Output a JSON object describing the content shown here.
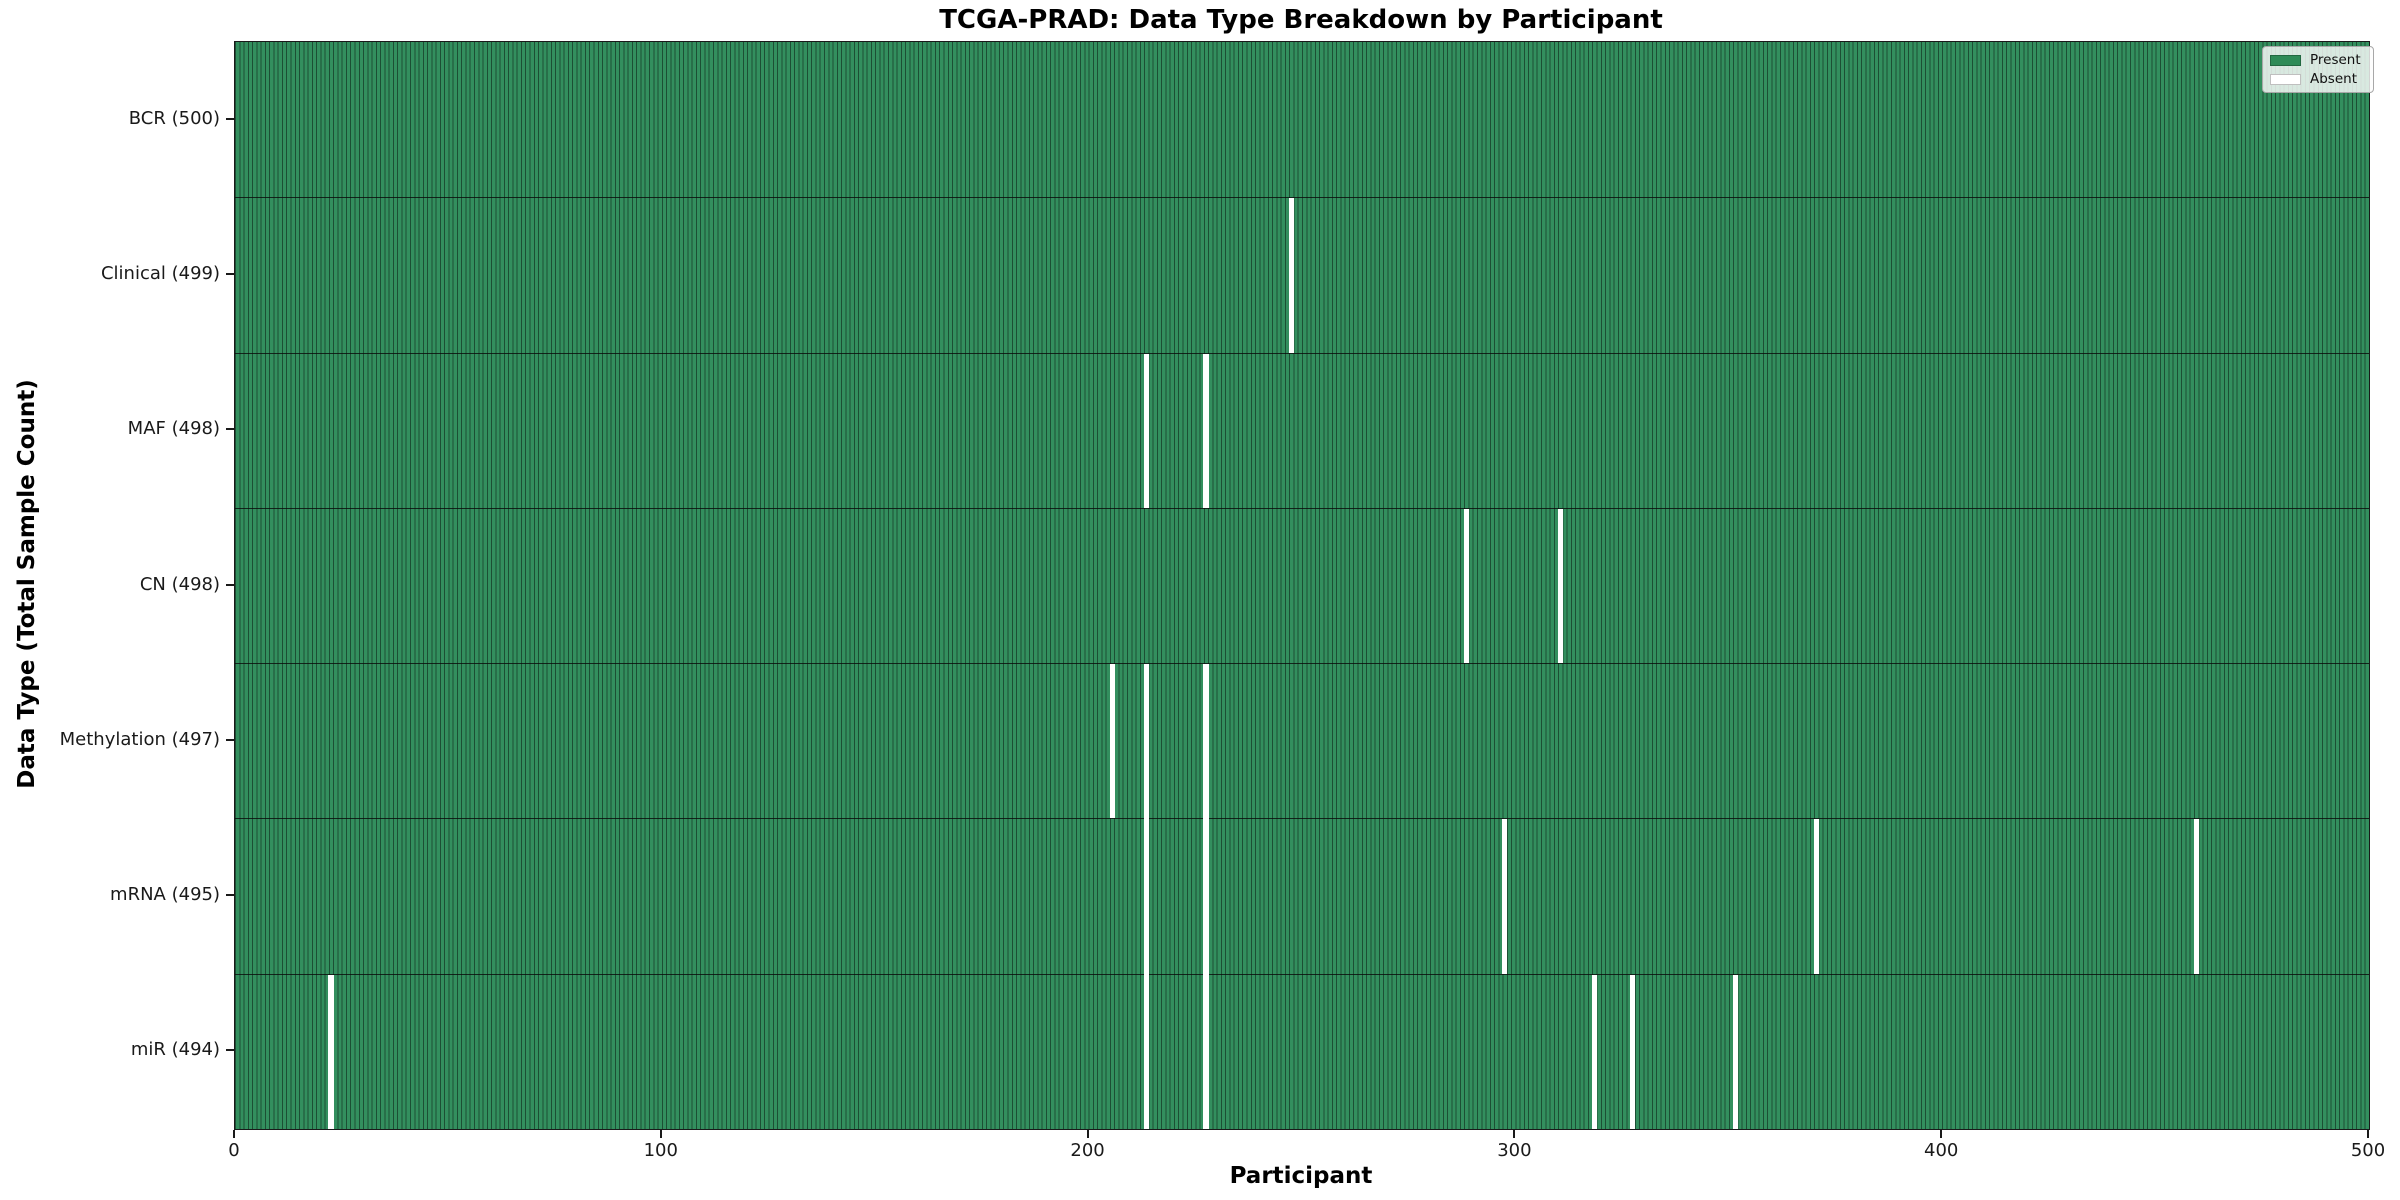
{
  "title": "TCGA-PRAD: Data Type Breakdown by Participant",
  "chart_data": {
    "type": "heatmap",
    "title": "TCGA-PRAD: Data Type Breakdown by Participant",
    "xlabel": "Participant",
    "ylabel": "Data Type (Total Sample Count)",
    "x_range": [
      0,
      500
    ],
    "n_participants": 500,
    "x_ticks": [
      0,
      100,
      200,
      300,
      400,
      500
    ],
    "grid": false,
    "legend_position": "upper right",
    "legend": [
      {
        "label": "Present",
        "color": "#2E8B57"
      },
      {
        "label": "Absent",
        "color": "#FFFFFF"
      }
    ],
    "rows": [
      {
        "name": "BCR",
        "label": "BCR (500)",
        "total": 500,
        "absent_participants": []
      },
      {
        "name": "Clinical",
        "label": "Clinical (499)",
        "total": 499,
        "absent_participants": [
          247
        ]
      },
      {
        "name": "MAF",
        "label": "MAF (498)",
        "total": 498,
        "absent_participants": [
          213,
          227
        ]
      },
      {
        "name": "CN",
        "label": "CN (498)",
        "total": 498,
        "absent_participants": [
          288,
          310
        ]
      },
      {
        "name": "Methylation",
        "label": "Methylation (497)",
        "total": 497,
        "absent_participants": [
          205,
          213,
          227
        ]
      },
      {
        "name": "mRNA",
        "label": "mRNA (495)",
        "total": 495,
        "absent_participants": [
          213,
          227,
          297,
          370,
          459
        ]
      },
      {
        "name": "miR",
        "label": "miR (494)",
        "total": 494,
        "absent_participants": [
          22,
          213,
          227,
          318,
          327,
          351
        ]
      }
    ],
    "colors": {
      "present_fill": "#338F5E",
      "bar_edge": "rgba(0,0,0,0.45)",
      "absent": "#FFFFFF",
      "row_separator": "#1a1a1a",
      "axis": "#1a1a1a"
    }
  }
}
